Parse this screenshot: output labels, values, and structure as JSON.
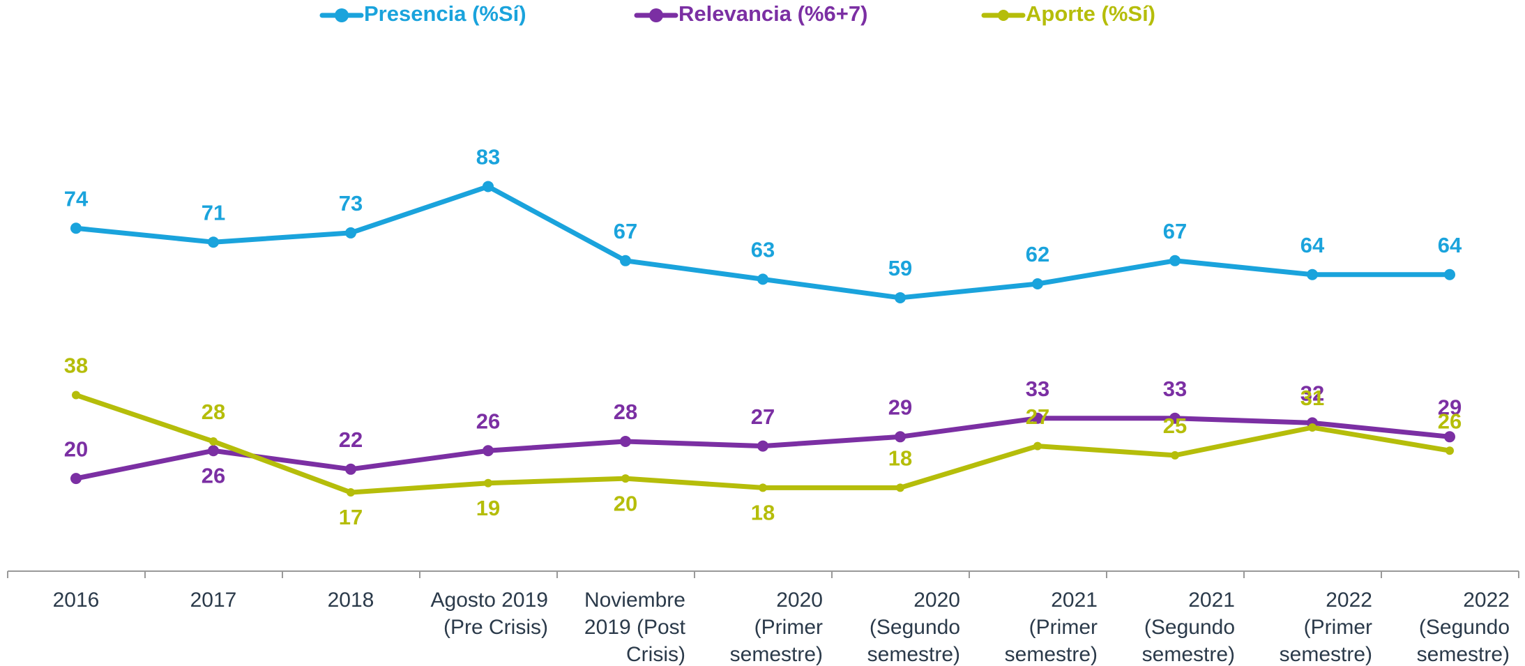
{
  "chart_data": {
    "type": "line",
    "categories": [
      "2016",
      "2017",
      "2018",
      "Agosto 2019\n(Pre Crisis)",
      "Noviembre\n2019 (Post\nCrisis)",
      "2020\n(Primer\nsemestre)",
      "2020\n(Segundo\nsemestre)",
      "2021\n(Primer\nsemestre)",
      "2021\n(Segundo\nsemestre)",
      "2022\n(Primer\nsemestre)",
      "2022\n(Segundo\nsemestre)"
    ],
    "series": [
      {
        "name": "Presencia (%Sí)",
        "color": "#1aa3dc",
        "values": [
          74,
          71,
          73,
          83,
          67,
          63,
          59,
          62,
          67,
          64,
          64
        ]
      },
      {
        "name": "Relevancia (%6+7)",
        "color": "#7b2fa3",
        "values": [
          20,
          26,
          22,
          26,
          28,
          27,
          29,
          33,
          33,
          32,
          29
        ]
      },
      {
        "name": "Aporte (%Sí)",
        "color": "#b5bd0a",
        "values": [
          38,
          28,
          17,
          19,
          20,
          18,
          18,
          27,
          25,
          31,
          26
        ]
      }
    ],
    "legend": "top"
  }
}
